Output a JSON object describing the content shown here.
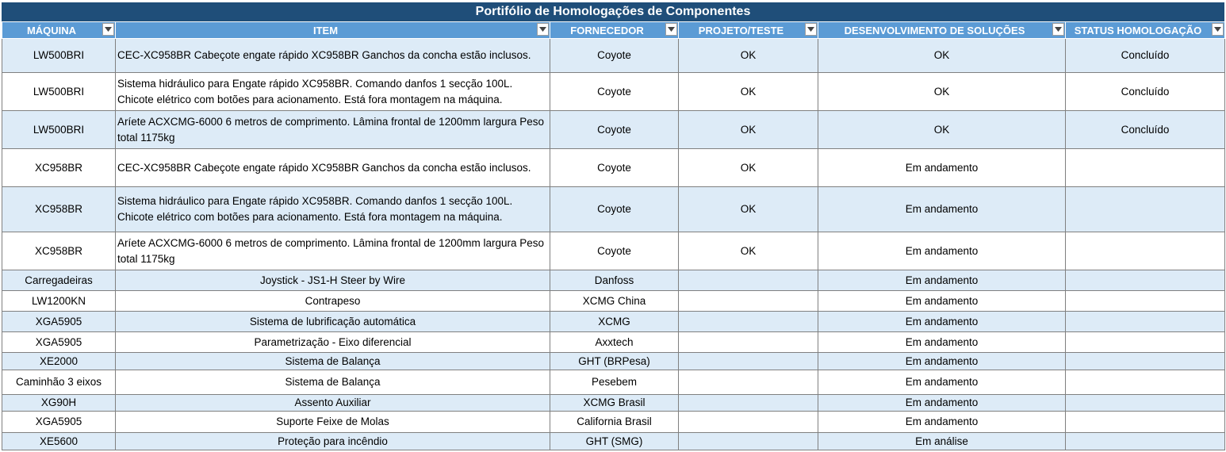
{
  "title": "Portifólio de Homologações de Componentes",
  "columns": [
    "MÁQUINA",
    "ITEM",
    "FORNECEDOR",
    "PROJETO/TESTE",
    "DESENVOLVIMENTO DE SOLUÇÕES",
    "STATUS HOMOLOGAÇÃO"
  ],
  "rows": [
    {
      "maquina": "LW500BRI",
      "item": "CEC-XC958BR Cabeçote engate rápido XC958BR Ganchos da concha estão inclusos.",
      "fornecedor": "Coyote",
      "projeto": "OK",
      "desenvolvimento": "OK",
      "status": "Concluído"
    },
    {
      "maquina": "LW500BRI",
      "item": "Sistema hidráulico para Engate rápido XC958BR. Comando danfos 1 secção 100L. Chicote elétrico com botões para acionamento. Está fora montagem na máquina.",
      "fornecedor": "Coyote",
      "projeto": "OK",
      "desenvolvimento": "OK",
      "status": "Concluído"
    },
    {
      "maquina": "LW500BRI",
      "item": "Aríete ACXCMG-6000 6 metros de comprimento. Lâmina frontal de 1200mm largura Peso total 1175kg",
      "fornecedor": "Coyote",
      "projeto": "OK",
      "desenvolvimento": "OK",
      "status": "Concluído"
    },
    {
      "maquina": "XC958BR",
      "item": "CEC-XC958BR Cabeçote engate rápido XC958BR Ganchos da concha estão inclusos.",
      "fornecedor": "Coyote",
      "projeto": "OK",
      "desenvolvimento": "Em andamento",
      "status": ""
    },
    {
      "maquina": "XC958BR",
      "item": "Sistema hidráulico para Engate rápido XC958BR. Comando danfos 1 secção 100L. Chicote elétrico com botões para acionamento. Está fora montagem na máquina.",
      "fornecedor": "Coyote",
      "projeto": "OK",
      "desenvolvimento": "Em andamento",
      "status": ""
    },
    {
      "maquina": "XC958BR",
      "item": "Aríete ACXCMG-6000 6 metros de comprimento. Lâmina frontal de 1200mm largura Peso total 1175kg",
      "fornecedor": "Coyote",
      "projeto": "OK",
      "desenvolvimento": "Em andamento",
      "status": ""
    },
    {
      "maquina": "Carregadeiras",
      "item": "Joystick - JS1-H Steer by Wire",
      "fornecedor": "Danfoss",
      "projeto": "",
      "desenvolvimento": "Em andamento",
      "status": ""
    },
    {
      "maquina": "LW1200KN",
      "item": "Contrapeso",
      "fornecedor": "XCMG China",
      "projeto": "",
      "desenvolvimento": "Em andamento",
      "status": ""
    },
    {
      "maquina": "XGA5905",
      "item": "Sistema de lubrificação automática",
      "fornecedor": "XCMG",
      "projeto": "",
      "desenvolvimento": "Em andamento",
      "status": ""
    },
    {
      "maquina": "XGA5905",
      "item": "Parametrização - Eixo diferencial",
      "fornecedor": "Axxtech",
      "projeto": "",
      "desenvolvimento": "Em andamento",
      "status": ""
    },
    {
      "maquina": "XE2000",
      "item": "Sistema de Balança",
      "fornecedor": "GHT (BRPesa)",
      "projeto": "",
      "desenvolvimento": "Em andamento",
      "status": ""
    },
    {
      "maquina": "Caminhão 3 eixos",
      "item": "Sistema de Balança",
      "fornecedor": "Pesebem",
      "projeto": "",
      "desenvolvimento": "Em andamento",
      "status": ""
    },
    {
      "maquina": "XG90H",
      "item": "Assento Auxiliar",
      "fornecedor": "XCMG Brasil",
      "projeto": "",
      "desenvolvimento": "Em andamento",
      "status": ""
    },
    {
      "maquina": "XGA5905",
      "item": "Suporte Feixe de Molas",
      "fornecedor": "California Brasil",
      "projeto": "",
      "desenvolvimento": "Em andamento",
      "status": ""
    },
    {
      "maquina": "XE5600",
      "item": "Proteção para incêndio",
      "fornecedor": "GHT (SMG)",
      "projeto": "",
      "desenvolvimento": "Em análise",
      "status": ""
    }
  ],
  "colors": {
    "title_bg": "#1f4e79",
    "header_bg": "#5b9bd5",
    "band": "#ddebf7"
  }
}
